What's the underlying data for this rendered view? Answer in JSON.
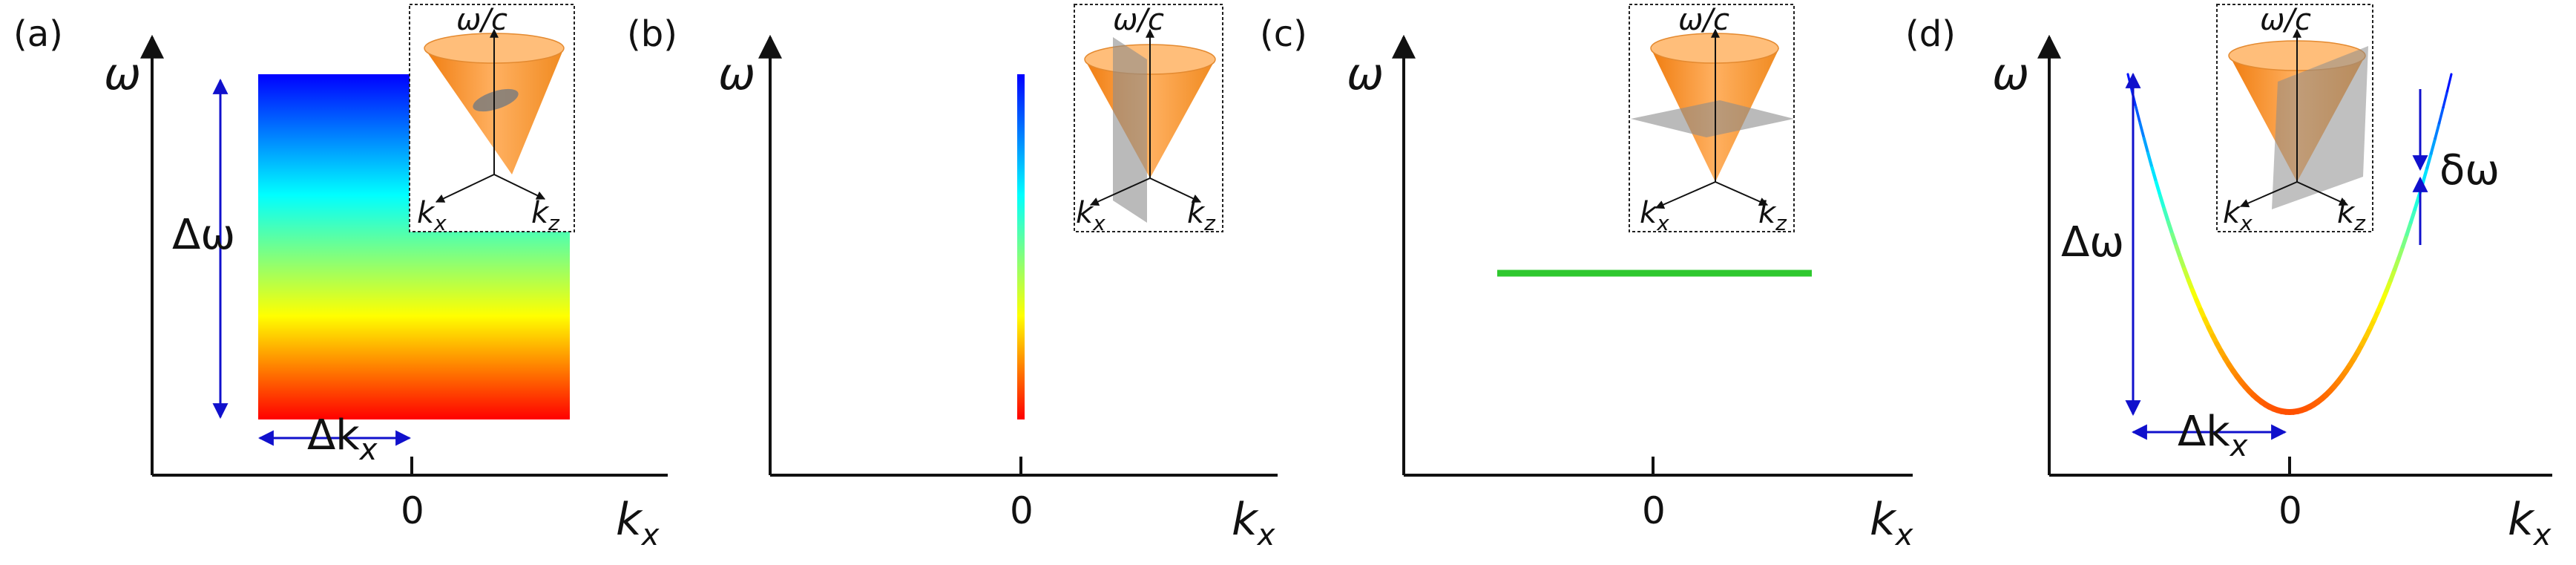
{
  "panels": [
    {
      "id": "a",
      "label": "(a)",
      "y_axis": "ω",
      "x_axis": "k",
      "x_axis_sub": "x",
      "origin_tick": "0",
      "annotations": {
        "delta_omega": "Δω",
        "delta_k": "Δk",
        "delta_k_sub": "x"
      },
      "inset": {
        "top": "ω/c",
        "left": "k",
        "left_sub": "x",
        "right": "k",
        "right_sub": "z",
        "plane": "small-spot"
      },
      "content": "gradient-rectangle"
    },
    {
      "id": "b",
      "label": "(b)",
      "y_axis": "ω",
      "x_axis": "k",
      "x_axis_sub": "x",
      "origin_tick": "0",
      "inset": {
        "top": "ω/c",
        "left": "k",
        "left_sub": "x",
        "right": "k",
        "right_sub": "z",
        "plane": "vertical"
      },
      "content": "vertical-line"
    },
    {
      "id": "c",
      "label": "(c)",
      "y_axis": "ω",
      "x_axis": "k",
      "x_axis_sub": "x",
      "origin_tick": "0",
      "inset": {
        "top": "ω/c",
        "left": "k",
        "left_sub": "x",
        "right": "k",
        "right_sub": "z",
        "plane": "horizontal"
      },
      "content": "horizontal-line"
    },
    {
      "id": "d",
      "label": "(d)",
      "y_axis": "ω",
      "x_axis": "k",
      "x_axis_sub": "x",
      "origin_tick": "0",
      "annotations": {
        "delta_omega": "Δω",
        "delta_k": "Δk",
        "delta_k_sub": "x",
        "small_delta_omega": "δω"
      },
      "inset": {
        "top": "ω/c",
        "left": "k",
        "left_sub": "x",
        "right": "k",
        "right_sub": "z",
        "plane": "tilted"
      },
      "content": "parabola"
    }
  ],
  "colors": {
    "axis": "#111111",
    "annotation_arrow": "#1010cc",
    "cone": "#ff9a2e",
    "plane": "#8c8c8c",
    "line_c": "#2ec82e",
    "spectrum": [
      "#0000ff",
      "#00ffff",
      "#ffff00",
      "#ff0000"
    ]
  }
}
